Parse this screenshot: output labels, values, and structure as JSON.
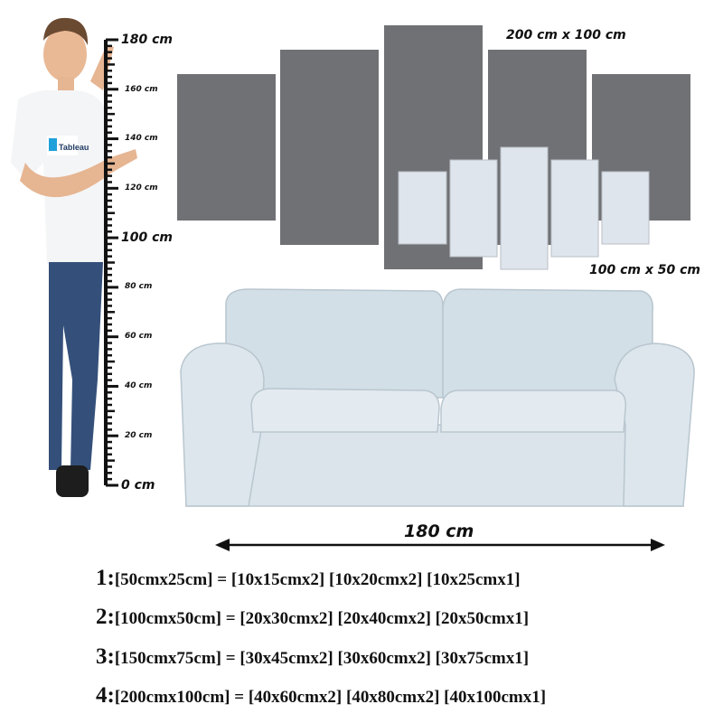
{
  "colors": {
    "panel_large": "#707175",
    "panel_small": "#dfe5ec",
    "sofa": "#d6e1e8",
    "ruler": "#111111"
  },
  "ruler": {
    "labels_big": [
      "180 cm",
      "100 cm",
      "0 cm"
    ],
    "labels_small": [
      "160 cm",
      "140 cm",
      "120 cm",
      "80 cm",
      "60 cm",
      "40 cm",
      "20 cm"
    ]
  },
  "person": {
    "shirt_logo": "Tableau"
  },
  "dimensions": {
    "large_set": "200 cm x 100 cm",
    "small_set": "100 cm x 50 cm",
    "sofa_width": "180 cm"
  },
  "specs": [
    {
      "num": "1:",
      "text": "[50cmx25cm] = [10x15cmx2] [10x20cmx2] [10x25cmx1]"
    },
    {
      "num": "2:",
      "text": "[100cmx50cm] = [20x30cmx2] [20x40cmx2] [20x50cmx1]"
    },
    {
      "num": "3:",
      "text": "[150cmx75cm] = [30x45cmx2] [30x60cmx2] [30x75cmx1]"
    },
    {
      "num": "4:",
      "text": "[200cmx100cm] = [40x60cmx2] [40x80cmx2] [40x100cmx1]"
    }
  ]
}
